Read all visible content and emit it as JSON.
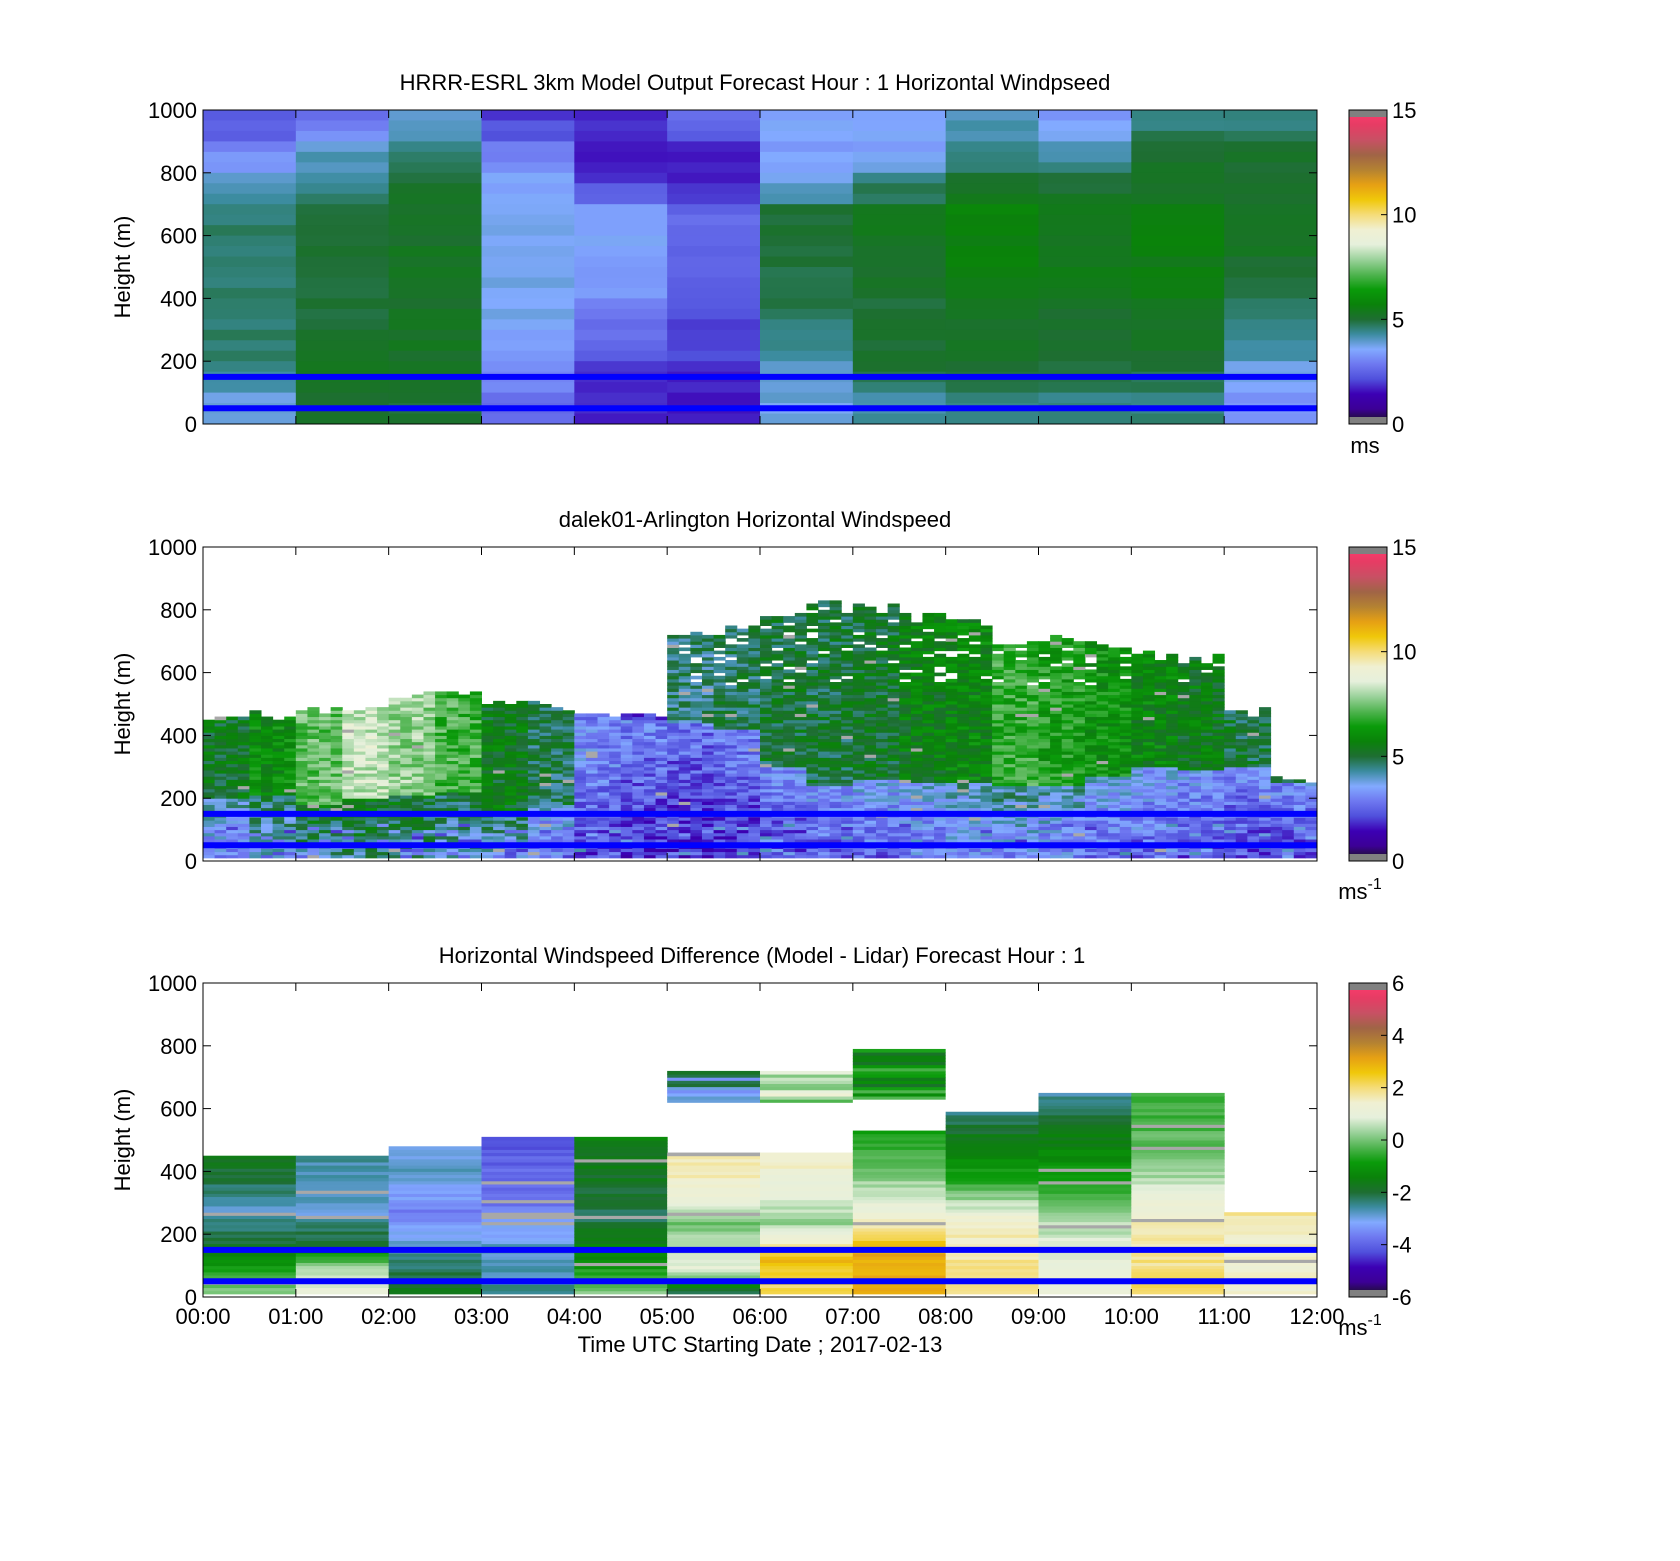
{
  "figure": {
    "xlabel": "Time UTC  Starting Date ; 2017-02-13",
    "x_ticks": [
      "00:00",
      "01:00",
      "02:00",
      "03:00",
      "04:00",
      "05:00",
      "06:00",
      "07:00",
      "08:00",
      "09:00",
      "10:00",
      "11:00",
      "12:00"
    ]
  },
  "colors": {
    "line_marker": "#0000ff",
    "colorbar_stops": [
      "#141414",
      "#3c0096",
      "#3c00b4",
      "#5050dc",
      "#6e78f0",
      "#82aaff",
      "#3c8ca0",
      "#1e6e32",
      "#0a820a",
      "#0a9b0a",
      "#50b450",
      "#9bd29b",
      "#e6f0dc",
      "#f0f0d2",
      "#f5dc78",
      "#f0c80a",
      "#e6a014",
      "#b48232",
      "#a06446",
      "#c85064",
      "#e63c64",
      "#ff3c6e"
    ]
  },
  "chart_data": [
    {
      "type": "heatmap",
      "title": "HRRR-ESRL 3km Model Output   Forecast Hour : 1 Horizontal Windpseed",
      "ylabel": "Height (m)",
      "xlim": [
        "00:00",
        "12:00"
      ],
      "ylim": [
        0,
        1000
      ],
      "y_ticks": [
        "0",
        "200",
        "400",
        "600",
        "800",
        "1000"
      ],
      "colorbar": {
        "range": [
          0,
          15
        ],
        "ticks": [
          "0",
          "5",
          "10",
          "15"
        ],
        "unit": "ms"
      },
      "reference_lines_m": [
        150,
        50
      ],
      "columns": [
        "00:00",
        "01:00",
        "02:00",
        "03:00",
        "04:00",
        "05:00",
        "06:00",
        "07:00",
        "08:00",
        "09:00",
        "10:00",
        "11:00"
      ],
      "levels_top_m": [
        1000,
        900,
        800,
        700,
        400,
        200,
        100
      ],
      "values": [
        [
          2.2,
          2.8,
          4.0,
          2.0,
          1.8,
          2.7,
          3.5,
          3.5,
          4.0,
          3.3,
          4.5,
          4.5
        ],
        [
          3.0,
          4.0,
          4.5,
          2.8,
          1.6,
          1.6,
          3.3,
          3.5,
          4.5,
          4.0,
          5.0,
          5.0
        ],
        [
          4.0,
          4.2,
          5.0,
          3.5,
          2.0,
          1.6,
          3.8,
          4.5,
          5.0,
          5.0,
          5.2,
          5.2
        ],
        [
          4.6,
          5.0,
          5.2,
          3.8,
          3.6,
          2.6,
          5.0,
          5.3,
          5.8,
          5.5,
          5.7,
          5.3
        ],
        [
          4.7,
          5.0,
          5.2,
          3.7,
          3.0,
          2.2,
          4.8,
          5.0,
          5.3,
          5.2,
          5.2,
          4.8
        ],
        [
          4.5,
          5.2,
          5.2,
          3.2,
          1.8,
          1.8,
          4.0,
          5.0,
          5.0,
          5.0,
          5.0,
          3.8
        ],
        [
          3.8,
          5.0,
          5.0,
          2.6,
          1.7,
          1.7,
          3.8,
          4.3,
          4.6,
          4.5,
          4.5,
          3.2
        ]
      ]
    },
    {
      "type": "heatmap",
      "title": "dalek01-Arlington  Horizontal Windspeed",
      "ylabel": "Height (m)",
      "xlim": [
        "00:00",
        "12:00"
      ],
      "ylim": [
        0,
        1000
      ],
      "y_ticks": [
        "0",
        "200",
        "400",
        "600",
        "800",
        "1000"
      ],
      "colorbar": {
        "range": [
          0,
          15
        ],
        "ticks": [
          "0",
          "5",
          "10",
          "15"
        ],
        "unit": "ms-1"
      },
      "reference_lines_m": [
        150,
        50
      ],
      "x": [
        "00:00",
        "00:30",
        "01:00",
        "01:30",
        "02:00",
        "02:30",
        "03:00",
        "03:30",
        "04:00",
        "04:30",
        "05:00",
        "05:30",
        "06:00",
        "06:30",
        "07:00",
        "07:30",
        "08:00",
        "08:30",
        "09:00",
        "09:30",
        "10:00",
        "10:30",
        "11:00",
        "11:30"
      ],
      "column_top_m": [
        450,
        460,
        470,
        490,
        520,
        540,
        510,
        490,
        460,
        450,
        720,
        740,
        780,
        810,
        800,
        780,
        760,
        680,
        700,
        690,
        660,
        640,
        470,
        260
      ],
      "lower_layer_top_m": [
        200,
        210,
        180,
        200,
        210,
        220,
        150,
        180,
        360,
        450,
        440,
        420,
        300,
        240,
        260,
        250,
        250,
        240,
        240,
        270,
        300,
        290,
        300,
        250
      ],
      "lower_layer_speed": [
        3.0,
        3.6,
        4.2,
        4.4,
        4.2,
        3.8,
        3.6,
        2.6,
        2.0,
        1.8,
        1.6,
        1.8,
        2.0,
        2.2,
        2.4,
        2.6,
        3.0,
        3.2,
        3.0,
        2.6,
        2.4,
        2.2,
        2.0,
        2.0
      ],
      "upper_layer_speed": [
        5.3,
        6.0,
        7.3,
        8.3,
        7.8,
        7.0,
        5.4,
        4.8,
        3.0,
        2.2,
        4.5,
        4.8,
        5.0,
        5.0,
        5.2,
        5.6,
        5.8,
        6.8,
        6.5,
        6.2,
        5.8,
        5.5,
        5.0,
        4.5
      ]
    },
    {
      "type": "heatmap",
      "title": "Horizontal Windspeed Difference (Model - Lidar) Forecast Hour : 1",
      "ylabel": "Height (m)",
      "xlim": [
        "00:00",
        "12:00"
      ],
      "ylim": [
        0,
        1000
      ],
      "y_ticks": [
        "0",
        "200",
        "400",
        "600",
        "800",
        "1000"
      ],
      "colorbar": {
        "range": [
          -6,
          6
        ],
        "ticks": [
          "-6",
          "-4",
          "-2",
          "0",
          "2",
          "4",
          "6"
        ],
        "unit": "ms-1"
      },
      "reference_lines_m": [
        150,
        50
      ],
      "columns": [
        "00:00",
        "01:00",
        "02:00",
        "03:00",
        "04:00",
        "05:00",
        "06:00",
        "07:00",
        "08:00",
        "09:00",
        "10:00",
        "11:00"
      ],
      "column_top_m": [
        450,
        450,
        480,
        510,
        510,
        720,
        720,
        790,
        590,
        650,
        650,
        270
      ],
      "profiles": [
        [
          [
            0,
            0.3
          ],
          [
            0.15,
            -0.6
          ],
          [
            0.35,
            -1.8
          ],
          [
            0.6,
            -2.8
          ],
          [
            1.0,
            -1.6
          ]
        ],
        [
          [
            0,
            1.2
          ],
          [
            0.2,
            0.2
          ],
          [
            0.35,
            -1.8
          ],
          [
            0.6,
            -2.9
          ],
          [
            1.0,
            -2.6
          ]
        ],
        [
          [
            0,
            -1.6
          ],
          [
            0.3,
            -2.6
          ],
          [
            0.55,
            -3.8
          ],
          [
            0.75,
            -2.9
          ],
          [
            1.0,
            -2.8
          ]
        ],
        [
          [
            0,
            -2.5
          ],
          [
            0.3,
            -2.8
          ],
          [
            0.6,
            -3.8
          ],
          [
            1.0,
            -4.2
          ]
        ],
        [
          [
            0,
            0.3
          ],
          [
            0.2,
            -1.0
          ],
          [
            0.5,
            -2.2
          ],
          [
            1.0,
            -1.4
          ]
        ],
        [
          [
            0,
            -2.4
          ],
          [
            0.2,
            1.0
          ],
          [
            0.5,
            0.0
          ],
          [
            0.75,
            1.5
          ],
          [
            1.0,
            1.6
          ]
        ],
        [
          [
            0,
            2.0
          ],
          [
            0.25,
            2.8
          ],
          [
            0.5,
            0.2
          ],
          [
            0.7,
            1.0
          ],
          [
            1.0,
            1.6
          ]
        ],
        [
          [
            0,
            3.0
          ],
          [
            0.25,
            3.0
          ],
          [
            0.45,
            1.5
          ],
          [
            0.65,
            0.4
          ],
          [
            1.0,
            -1.0
          ]
        ],
        [
          [
            0,
            2.0
          ],
          [
            0.4,
            1.5
          ],
          [
            0.6,
            -0.5
          ],
          [
            1.0,
            -2.4
          ]
        ],
        [
          [
            0,
            1.2
          ],
          [
            0.35,
            0.5
          ],
          [
            0.55,
            -0.6
          ],
          [
            1.0,
            -2.6
          ]
        ],
        [
          [
            0,
            2.2
          ],
          [
            0.4,
            1.4
          ],
          [
            0.65,
            0.0
          ],
          [
            1.0,
            -0.6
          ]
        ],
        [
          [
            0,
            1.5
          ],
          [
            0.5,
            1.3
          ],
          [
            1.0,
            1.8
          ]
        ]
      ],
      "upper_blocks": [
        {
          "x_from": "05:00",
          "x_to": "06:00",
          "y_from_m": 620,
          "y_to_m": 720,
          "value": -2.6
        },
        {
          "x_from": "06:00",
          "x_to": "07:00",
          "y_from_m": 620,
          "y_to_m": 720,
          "value": 0.5
        },
        {
          "x_from": "07:00",
          "x_to": "08:00",
          "y_from_m": 630,
          "y_to_m": 790,
          "value": -1.0
        }
      ]
    }
  ]
}
